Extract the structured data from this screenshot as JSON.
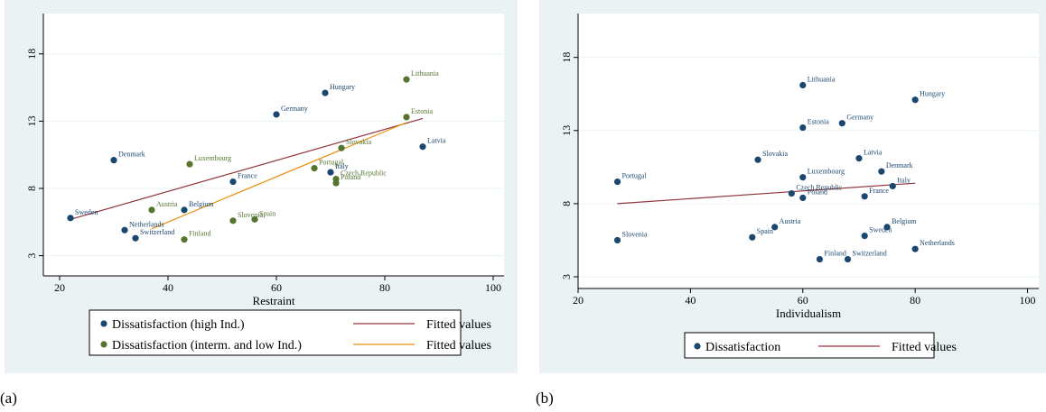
{
  "captions": [
    "(a)",
    "(b)"
  ],
  "chart_data": [
    {
      "type": "scatter",
      "xlabel": "Restraint",
      "ylabel": "",
      "xlim": [
        17,
        102
      ],
      "ylim": [
        1.5,
        21
      ],
      "xticks": [
        20,
        40,
        60,
        80,
        100
      ],
      "yticks": [
        3,
        8,
        13,
        18
      ],
      "grid": true,
      "legend_placement": "bottom",
      "series": [
        {
          "name": "Dissatisfaction (high Ind.)",
          "color": "#1a476f",
          "points": [
            {
              "label": "Sweden",
              "x": 22,
              "y": 5.8
            },
            {
              "label": "Denmark",
              "x": 30,
              "y": 10.1
            },
            {
              "label": "Netherlands",
              "x": 32,
              "y": 4.9
            },
            {
              "label": "Switzerland",
              "x": 34,
              "y": 4.3
            },
            {
              "label": "Belgium",
              "x": 43,
              "y": 6.4
            },
            {
              "label": "France",
              "x": 52,
              "y": 8.5
            },
            {
              "label": "Germany",
              "x": 60,
              "y": 13.5
            },
            {
              "label": "Hungary",
              "x": 69,
              "y": 15.1
            },
            {
              "label": "Italy",
              "x": 70,
              "y": 9.2
            },
            {
              "label": "Latvia",
              "x": 87,
              "y": 11.1
            }
          ]
        },
        {
          "name": "Dissatisfaction (interm. and low Ind.)",
          "color": "#55752f",
          "points": [
            {
              "label": "Austria",
              "x": 37,
              "y": 6.4
            },
            {
              "label": "Luxembourg",
              "x": 44,
              "y": 9.8
            },
            {
              "label": "Finland",
              "x": 43,
              "y": 4.2
            },
            {
              "label": "Slovenia",
              "x": 52,
              "y": 5.6
            },
            {
              "label": "Spain",
              "x": 56,
              "y": 5.7
            },
            {
              "label": "Portugal",
              "x": 67,
              "y": 9.5
            },
            {
              "label": "Czech Republic",
              "x": 71,
              "y": 8.7
            },
            {
              "label": "Poland",
              "x": 71,
              "y": 8.4
            },
            {
              "label": "Slovakia",
              "x": 72,
              "y": 11.0
            },
            {
              "label": "Estonia",
              "x": 84,
              "y": 13.3
            },
            {
              "label": "Lithuania",
              "x": 84,
              "y": 16.1
            }
          ]
        }
      ],
      "fitted_lines": [
        {
          "name": "Fitted values",
          "color": "#90353b",
          "x": [
            22,
            87
          ],
          "y": [
            5.7,
            13.2
          ]
        },
        {
          "name": "Fitted values",
          "color": "#e8900f",
          "x": [
            37,
            84
          ],
          "y": [
            5.0,
            12.9
          ]
        }
      ],
      "legend": [
        {
          "kind": "marker",
          "text": "Dissatisfaction (high Ind.)",
          "color": "#1a476f"
        },
        {
          "kind": "line",
          "text": "Fitted values",
          "color": "#90353b"
        },
        {
          "kind": "marker",
          "text": "Dissatisfaction (interm. and low Ind.)",
          "color": "#55752f"
        },
        {
          "kind": "line",
          "text": "Fitted values",
          "color": "#e8900f"
        }
      ]
    },
    {
      "type": "scatter",
      "xlabel": "Individualism",
      "ylabel": "",
      "xlim": [
        20,
        102
      ],
      "ylim": [
        2.2,
        21
      ],
      "xticks": [
        20,
        40,
        60,
        80,
        100
      ],
      "yticks": [
        3,
        8,
        13,
        18
      ],
      "grid": true,
      "legend_placement": "bottom",
      "series": [
        {
          "name": "Dissatisfaction",
          "color": "#1a476f",
          "points": [
            {
              "label": "Lithuania",
              "x": 60,
              "y": 16.1
            },
            {
              "label": "Hungary",
              "x": 80,
              "y": 15.1
            },
            {
              "label": "Estonia",
              "x": 60,
              "y": 13.2
            },
            {
              "label": "Germany",
              "x": 67,
              "y": 13.5
            },
            {
              "label": "Slovakia",
              "x": 52,
              "y": 11.0
            },
            {
              "label": "Latvia",
              "x": 70,
              "y": 11.1
            },
            {
              "label": "Denmark",
              "x": 74,
              "y": 10.2
            },
            {
              "label": "Luxembourg",
              "x": 60,
              "y": 9.8
            },
            {
              "label": "Portugal",
              "x": 27,
              "y": 9.5
            },
            {
              "label": "Italy",
              "x": 76,
              "y": 9.2
            },
            {
              "label": "Czech Republic",
              "x": 58,
              "y": 8.7
            },
            {
              "label": "Poland",
              "x": 60,
              "y": 8.4
            },
            {
              "label": "France",
              "x": 71,
              "y": 8.5
            },
            {
              "label": "Austria",
              "x": 55,
              "y": 6.4
            },
            {
              "label": "Belgium",
              "x": 75,
              "y": 6.4
            },
            {
              "label": "Spain",
              "x": 51,
              "y": 5.7
            },
            {
              "label": "Sweden",
              "x": 71,
              "y": 5.8
            },
            {
              "label": "Slovenia",
              "x": 27,
              "y": 5.5
            },
            {
              "label": "Netherlands",
              "x": 80,
              "y": 4.9
            },
            {
              "label": "Finland",
              "x": 63,
              "y": 4.2
            },
            {
              "label": "Switzerland",
              "x": 68,
              "y": 4.2
            }
          ]
        }
      ],
      "fitted_lines": [
        {
          "name": "Fitted values",
          "color": "#90353b",
          "x": [
            27,
            80
          ],
          "y": [
            8.0,
            9.4
          ]
        }
      ],
      "legend": [
        {
          "kind": "marker",
          "text": "Dissatisfaction",
          "color": "#1a476f"
        },
        {
          "kind": "line",
          "text": "Fitted values",
          "color": "#90353b"
        }
      ]
    }
  ]
}
